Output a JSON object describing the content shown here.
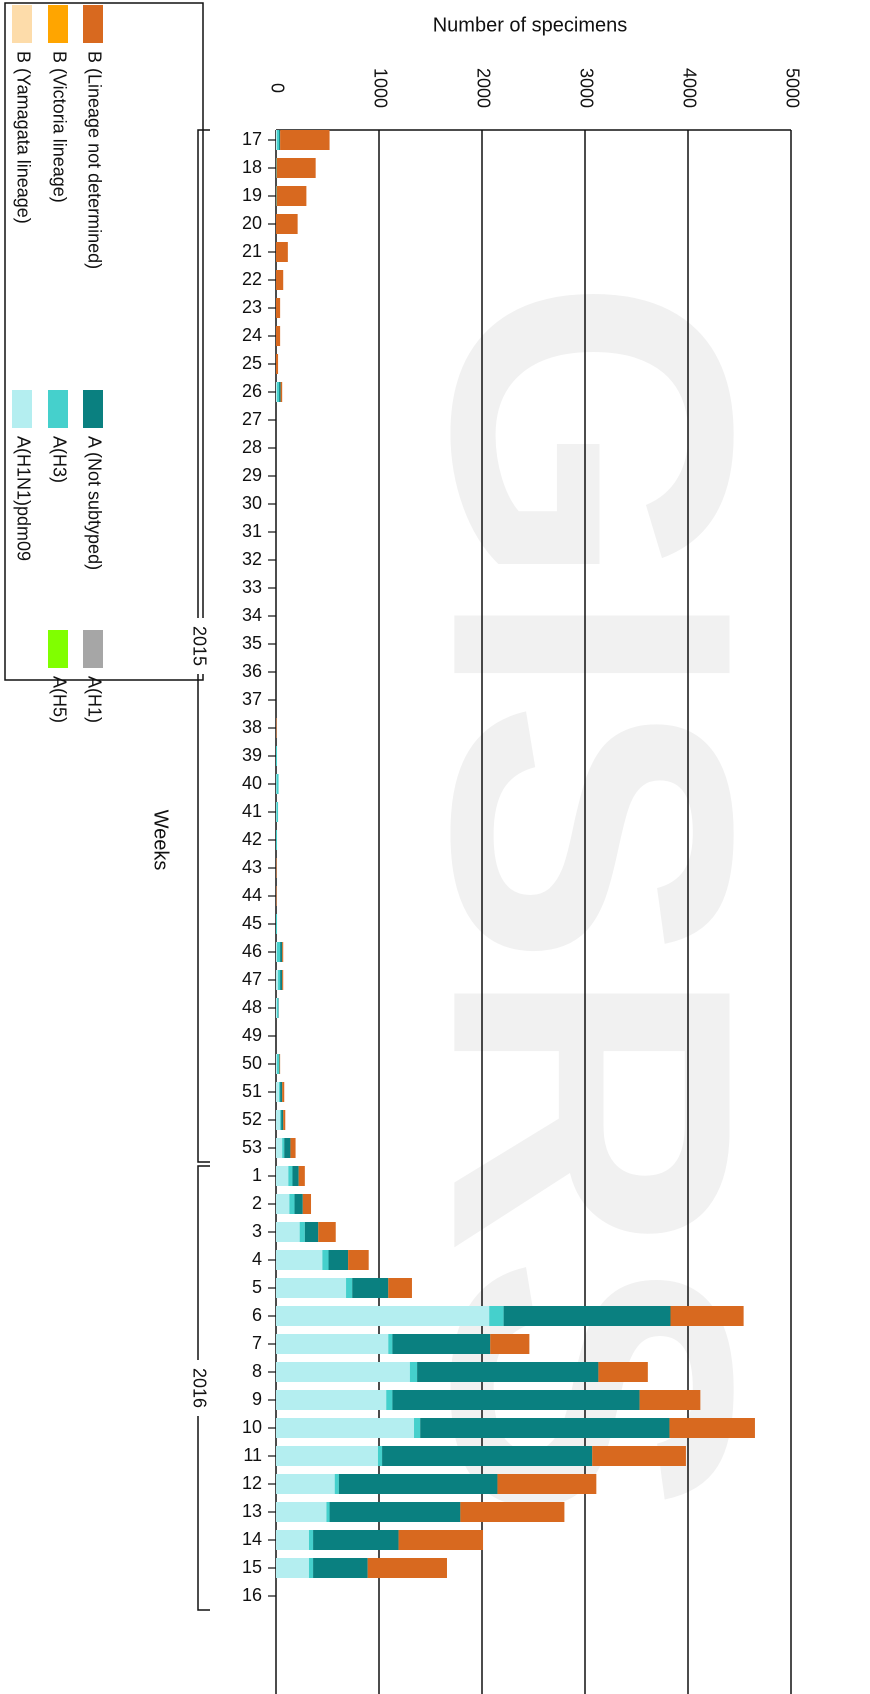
{
  "chart_data": {
    "type": "stacked-bar",
    "title": "Number of specimens",
    "x_axis_label": "Weeks",
    "watermark": "GISRS",
    "categories": [
      "17",
      "18",
      "19",
      "20",
      "21",
      "22",
      "23",
      "24",
      "25",
      "26",
      "27",
      "28",
      "29",
      "30",
      "31",
      "32",
      "33",
      "34",
      "35",
      "36",
      "37",
      "38",
      "39",
      "40",
      "41",
      "42",
      "43",
      "44",
      "45",
      "46",
      "47",
      "48",
      "49",
      "50",
      "51",
      "52",
      "53",
      "1",
      "2",
      "3",
      "4",
      "5",
      "6",
      "7",
      "8",
      "9",
      "10",
      "11",
      "12",
      "13",
      "14",
      "15",
      "16"
    ],
    "year_groups": [
      {
        "label": "2015",
        "start_category": "17",
        "end_category": "53"
      },
      {
        "label": "2016",
        "start_category": "1",
        "end_category": "16"
      }
    ],
    "ylim": [
      0,
      5000
    ],
    "yticks": [
      0,
      1000,
      2000,
      3000,
      4000,
      5000
    ],
    "grid": true,
    "series": [
      {
        "name": "A(H1N1)pdm09",
        "color": "#b4eef0",
        "values": [
          10,
          0,
          0,
          0,
          0,
          0,
          0,
          0,
          0,
          10,
          0,
          0,
          0,
          0,
          0,
          0,
          0,
          0,
          0,
          0,
          0,
          0,
          0,
          5,
          5,
          0,
          0,
          0,
          0,
          10,
          20,
          10,
          0,
          10,
          30,
          40,
          60,
          120,
          130,
          230,
          450,
          680,
          2070,
          1090,
          1300,
          1070,
          1340,
          990,
          570,
          490,
          320,
          320,
          0
        ]
      },
      {
        "name": "A(H3)",
        "color": "#45d0cc",
        "values": [
          20,
          5,
          5,
          0,
          0,
          0,
          0,
          0,
          0,
          20,
          0,
          0,
          0,
          0,
          0,
          0,
          0,
          0,
          0,
          0,
          0,
          0,
          10,
          20,
          15,
          10,
          0,
          0,
          10,
          30,
          20,
          10,
          0,
          20,
          10,
          10,
          20,
          40,
          50,
          50,
          60,
          60,
          140,
          40,
          70,
          60,
          60,
          40,
          40,
          30,
          40,
          40,
          0
        ]
      },
      {
        "name": "A (Not subtyped)",
        "color": "#0a8080",
        "values": [
          10,
          0,
          0,
          0,
          0,
          0,
          0,
          0,
          0,
          15,
          0,
          0,
          0,
          0,
          0,
          0,
          0,
          0,
          0,
          0,
          0,
          0,
          0,
          0,
          0,
          0,
          0,
          0,
          0,
          20,
          20,
          5,
          0,
          5,
          20,
          20,
          60,
          60,
          80,
          130,
          190,
          350,
          1620,
          950,
          1760,
          2400,
          2420,
          2040,
          1540,
          1270,
          830,
          530,
          0
        ]
      },
      {
        "name": "A(H1)",
        "color": "#a6a6a6",
        "values": [
          0,
          0,
          0,
          0,
          0,
          0,
          0,
          0,
          0,
          0,
          0,
          0,
          0,
          0,
          0,
          0,
          0,
          0,
          0,
          0,
          0,
          0,
          0,
          0,
          0,
          0,
          0,
          0,
          0,
          0,
          0,
          0,
          0,
          0,
          0,
          0,
          0,
          0,
          0,
          0,
          0,
          0,
          0,
          0,
          0,
          0,
          0,
          0,
          0,
          0,
          0,
          0,
          0
        ]
      },
      {
        "name": "A(H5)",
        "color": "#80ff00",
        "values": [
          0,
          0,
          0,
          0,
          0,
          0,
          0,
          0,
          0,
          0,
          0,
          0,
          0,
          0,
          0,
          0,
          0,
          0,
          0,
          0,
          0,
          0,
          0,
          0,
          0,
          0,
          0,
          0,
          0,
          0,
          0,
          0,
          0,
          0,
          0,
          0,
          0,
          0,
          0,
          0,
          0,
          0,
          0,
          0,
          0,
          0,
          0,
          0,
          0,
          0,
          0,
          0,
          0
        ]
      },
      {
        "name": "B (Yamagata lineage)",
        "color": "#fddcaa",
        "values": [
          0,
          0,
          0,
          0,
          0,
          0,
          0,
          0,
          0,
          0,
          0,
          0,
          0,
          0,
          0,
          0,
          0,
          0,
          0,
          0,
          0,
          0,
          0,
          0,
          0,
          0,
          0,
          0,
          0,
          0,
          0,
          0,
          0,
          0,
          0,
          0,
          0,
          0,
          0,
          0,
          0,
          0,
          0,
          0,
          0,
          0,
          0,
          0,
          0,
          0,
          0,
          0,
          0
        ]
      },
      {
        "name": "B (Victoria lineage)",
        "color": "#ffa500",
        "values": [
          0,
          0,
          0,
          0,
          0,
          0,
          0,
          0,
          0,
          0,
          0,
          0,
          0,
          0,
          0,
          0,
          0,
          0,
          0,
          0,
          0,
          0,
          0,
          0,
          0,
          0,
          0,
          0,
          0,
          0,
          0,
          0,
          0,
          0,
          0,
          0,
          0,
          0,
          0,
          0,
          0,
          0,
          0,
          0,
          0,
          0,
          0,
          0,
          0,
          0,
          0,
          0,
          0
        ]
      },
      {
        "name": "B (Lineage not determined)",
        "color": "#d8691f",
        "values": [
          480,
          380,
          290,
          210,
          115,
          70,
          40,
          40,
          20,
          15,
          0,
          0,
          0,
          0,
          0,
          0,
          0,
          0,
          0,
          0,
          0,
          5,
          0,
          0,
          0,
          0,
          5,
          5,
          0,
          10,
          10,
          0,
          0,
          5,
          20,
          20,
          50,
          60,
          80,
          170,
          200,
          230,
          710,
          380,
          480,
          590,
          830,
          910,
          960,
          1010,
          820,
          770,
          0
        ]
      }
    ]
  }
}
